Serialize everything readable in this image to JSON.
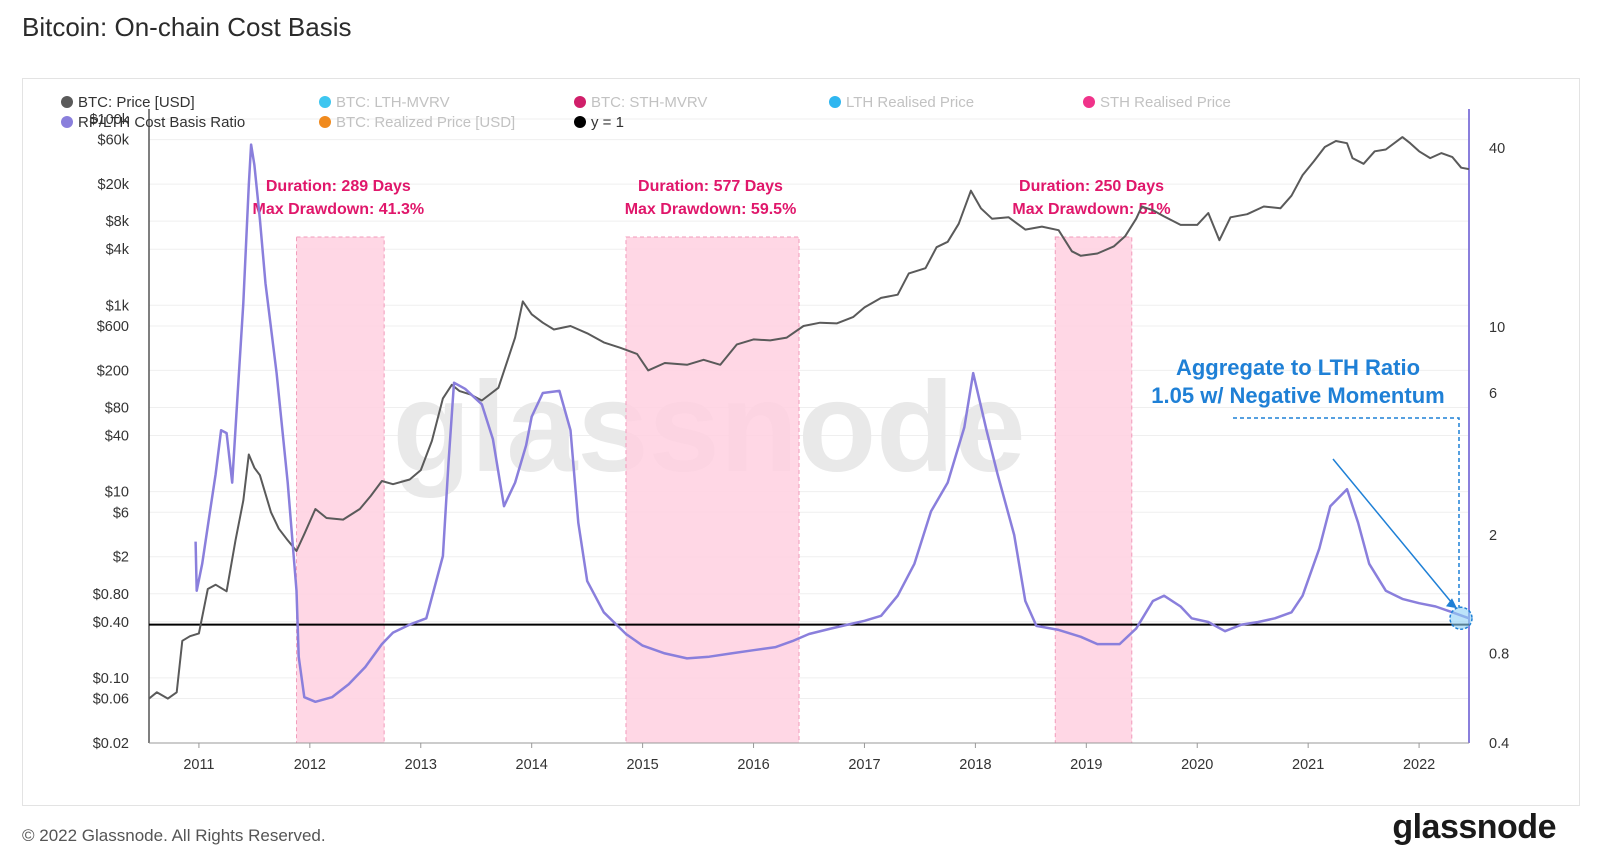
{
  "title": "Bitcoin: On-chain Cost Basis",
  "footer": {
    "copyright": "© 2022 Glassnode. All Rights Reserved.",
    "logo": "glassnode"
  },
  "watermark": "glassnode",
  "colors": {
    "price": "#5a5a5a",
    "ratio": "#8a7fdc",
    "lth_mvrv": "#3ec6f0",
    "sth_mvrv": "#d01f6a",
    "lth_realised": "#2fb6f0",
    "sth_realised": "#f0338a",
    "realized_price": "#f08a1e",
    "y1": "#000000",
    "shade": "#ffd0e0",
    "shade_border": "#f19bbb",
    "annotation_pink": "#e0176b",
    "annotation_blue": "#1f80d6"
  },
  "chart_data": {
    "type": "line",
    "legend": [
      {
        "name": "BTC: Price [USD]",
        "color": "#5a5a5a",
        "active": true
      },
      {
        "name": "BTC: LTH-MVRV",
        "color": "#3ec6f0",
        "active": false
      },
      {
        "name": "BTC: STH-MVRV",
        "color": "#d01f6a",
        "active": false
      },
      {
        "name": "LTH Realised Price",
        "color": "#2fb6f0",
        "active": false
      },
      {
        "name": "STH Realised Price",
        "color": "#f0338a",
        "active": false
      },
      {
        "name": "RP/LTH Cost Basis Ratio",
        "color": "#8a7fdc",
        "active": true
      },
      {
        "name": "BTC: Realized Price [USD]",
        "color": "#f08a1e",
        "active": false
      },
      {
        "name": "y = 1",
        "color": "#000000",
        "active": true
      }
    ],
    "x_ticks": [
      "2011",
      "2012",
      "2013",
      "2014",
      "2015",
      "2016",
      "2017",
      "2018",
      "2019",
      "2020",
      "2021",
      "2022"
    ],
    "x_range": [
      2010.55,
      2022.45
    ],
    "y_left": {
      "scale": "log",
      "range": [
        0.02,
        100000
      ],
      "ticks": [
        {
          "value": 100000,
          "label": "$100k"
        },
        {
          "value": 60000,
          "label": "$60k"
        },
        {
          "value": 20000,
          "label": "$20k"
        },
        {
          "value": 8000,
          "label": "$8k"
        },
        {
          "value": 4000,
          "label": "$4k"
        },
        {
          "value": 1000,
          "label": "$1k"
        },
        {
          "value": 600,
          "label": "$600"
        },
        {
          "value": 200,
          "label": "$200"
        },
        {
          "value": 80,
          "label": "$80"
        },
        {
          "value": 40,
          "label": "$40"
        },
        {
          "value": 10,
          "label": "$10"
        },
        {
          "value": 6,
          "label": "$6"
        },
        {
          "value": 2,
          "label": "$2"
        },
        {
          "value": 0.8,
          "label": "$0.80"
        },
        {
          "value": 0.4,
          "label": "$0.40"
        },
        {
          "value": 0.1,
          "label": "$0.10"
        },
        {
          "value": 0.06,
          "label": "$0.06"
        },
        {
          "value": 0.02,
          "label": "$0.02"
        }
      ]
    },
    "y_right": {
      "scale": "log",
      "range": [
        0.4,
        50
      ],
      "ticks": [
        {
          "value": 40,
          "label": "40"
        },
        {
          "value": 10,
          "label": "10"
        },
        {
          "value": 6,
          "label": "6"
        },
        {
          "value": 2,
          "label": "2"
        },
        {
          "value": 0.8,
          "label": "0.8"
        },
        {
          "value": 0.4,
          "label": "0.4"
        }
      ]
    },
    "series": [
      {
        "name": "BTC: Price [USD]",
        "axis": "left",
        "points": [
          [
            2010.55,
            0.06
          ],
          [
            2010.62,
            0.07
          ],
          [
            2010.72,
            0.06
          ],
          [
            2010.8,
            0.07
          ],
          [
            2010.85,
            0.25
          ],
          [
            2010.92,
            0.28
          ],
          [
            2011.0,
            0.3
          ],
          [
            2011.08,
            0.9
          ],
          [
            2011.15,
            1.0
          ],
          [
            2011.25,
            0.85
          ],
          [
            2011.33,
            3.0
          ],
          [
            2011.4,
            8.0
          ],
          [
            2011.45,
            25.0
          ],
          [
            2011.5,
            18.0
          ],
          [
            2011.55,
            15.0
          ],
          [
            2011.65,
            6.0
          ],
          [
            2011.72,
            4.0
          ],
          [
            2011.8,
            3.0
          ],
          [
            2011.88,
            2.3
          ],
          [
            2011.95,
            3.5
          ],
          [
            2012.05,
            6.5
          ],
          [
            2012.15,
            5.2
          ],
          [
            2012.3,
            5.0
          ],
          [
            2012.45,
            6.5
          ],
          [
            2012.55,
            9.0
          ],
          [
            2012.65,
            13.0
          ],
          [
            2012.75,
            12.0
          ],
          [
            2012.9,
            13.5
          ],
          [
            2013.0,
            17.0
          ],
          [
            2013.1,
            35.0
          ],
          [
            2013.2,
            100.0
          ],
          [
            2013.28,
            140.0
          ],
          [
            2013.35,
            120.0
          ],
          [
            2013.45,
            110.0
          ],
          [
            2013.55,
            95.0
          ],
          [
            2013.7,
            130.0
          ],
          [
            2013.85,
            450.0
          ],
          [
            2013.92,
            1100.0
          ],
          [
            2014.0,
            800.0
          ],
          [
            2014.1,
            650.0
          ],
          [
            2014.2,
            550.0
          ],
          [
            2014.35,
            600.0
          ],
          [
            2014.5,
            500.0
          ],
          [
            2014.65,
            400.0
          ],
          [
            2014.8,
            350.0
          ],
          [
            2014.95,
            300.0
          ],
          [
            2015.05,
            200.0
          ],
          [
            2015.2,
            240.0
          ],
          [
            2015.4,
            230.0
          ],
          [
            2015.55,
            260.0
          ],
          [
            2015.7,
            230.0
          ],
          [
            2015.85,
            380.0
          ],
          [
            2016.0,
            430.0
          ],
          [
            2016.15,
            420.0
          ],
          [
            2016.3,
            450.0
          ],
          [
            2016.45,
            600.0
          ],
          [
            2016.6,
            650.0
          ],
          [
            2016.75,
            640.0
          ],
          [
            2016.9,
            750.0
          ],
          [
            2017.0,
            950.0
          ],
          [
            2017.15,
            1200.0
          ],
          [
            2017.3,
            1300.0
          ],
          [
            2017.4,
            2200.0
          ],
          [
            2017.55,
            2500.0
          ],
          [
            2017.65,
            4200.0
          ],
          [
            2017.75,
            4800.0
          ],
          [
            2017.85,
            7500.0
          ],
          [
            2017.96,
            17000.0
          ],
          [
            2018.05,
            11000.0
          ],
          [
            2018.15,
            8500.0
          ],
          [
            2018.3,
            8800.0
          ],
          [
            2018.45,
            6500.0
          ],
          [
            2018.6,
            7000.0
          ],
          [
            2018.75,
            6400.0
          ],
          [
            2018.87,
            3800.0
          ],
          [
            2018.95,
            3400.0
          ],
          [
            2019.1,
            3600.0
          ],
          [
            2019.25,
            4300.0
          ],
          [
            2019.35,
            5500.0
          ],
          [
            2019.45,
            8500.0
          ],
          [
            2019.5,
            11500.0
          ],
          [
            2019.6,
            10500.0
          ],
          [
            2019.7,
            9000.0
          ],
          [
            2019.85,
            7300.0
          ],
          [
            2020.0,
            7300.0
          ],
          [
            2020.1,
            9800.0
          ],
          [
            2020.2,
            5000.0
          ],
          [
            2020.3,
            8800.0
          ],
          [
            2020.45,
            9500.0
          ],
          [
            2020.6,
            11500.0
          ],
          [
            2020.75,
            11000.0
          ],
          [
            2020.85,
            15000.0
          ],
          [
            2020.95,
            25000.0
          ],
          [
            2021.05,
            35000.0
          ],
          [
            2021.15,
            50000.0
          ],
          [
            2021.25,
            58000.0
          ],
          [
            2021.35,
            55000.0
          ],
          [
            2021.4,
            38000.0
          ],
          [
            2021.5,
            33000.0
          ],
          [
            2021.6,
            45000.0
          ],
          [
            2021.7,
            47000.0
          ],
          [
            2021.85,
            64000.0
          ],
          [
            2021.92,
            55000.0
          ],
          [
            2022.0,
            45000.0
          ],
          [
            2022.1,
            38000.0
          ],
          [
            2022.2,
            43000.0
          ],
          [
            2022.3,
            39000.0
          ],
          [
            2022.38,
            30000.0
          ],
          [
            2022.45,
            29000.0
          ]
        ]
      },
      {
        "name": "RP/LTH Cost Basis Ratio",
        "axis": "right",
        "points": [
          [
            2010.97,
            1.9
          ],
          [
            2010.98,
            1.3
          ],
          [
            2011.03,
            1.6
          ],
          [
            2011.1,
            2.4
          ],
          [
            2011.15,
            3.2
          ],
          [
            2011.2,
            4.5
          ],
          [
            2011.25,
            4.4
          ],
          [
            2011.3,
            3.0
          ],
          [
            2011.35,
            6.0
          ],
          [
            2011.4,
            12.0
          ],
          [
            2011.45,
            30.0
          ],
          [
            2011.47,
            41.0
          ],
          [
            2011.5,
            35.0
          ],
          [
            2011.55,
            23.0
          ],
          [
            2011.6,
            14.0
          ],
          [
            2011.7,
            7.0
          ],
          [
            2011.8,
            3.0
          ],
          [
            2011.88,
            1.3
          ],
          [
            2011.9,
            0.78
          ],
          [
            2011.95,
            0.57
          ],
          [
            2012.05,
            0.55
          ],
          [
            2012.2,
            0.57
          ],
          [
            2012.35,
            0.63
          ],
          [
            2012.5,
            0.72
          ],
          [
            2012.65,
            0.86
          ],
          [
            2012.75,
            0.94
          ],
          [
            2012.9,
            1.0
          ],
          [
            2013.05,
            1.05
          ],
          [
            2013.2,
            1.7
          ],
          [
            2013.25,
            3.5
          ],
          [
            2013.3,
            6.5
          ],
          [
            2013.4,
            6.2
          ],
          [
            2013.55,
            5.5
          ],
          [
            2013.65,
            4.2
          ],
          [
            2013.75,
            2.5
          ],
          [
            2013.85,
            3.0
          ],
          [
            2013.95,
            4.0
          ],
          [
            2014.0,
            5.0
          ],
          [
            2014.1,
            6.0
          ],
          [
            2014.25,
            6.1
          ],
          [
            2014.35,
            4.5
          ],
          [
            2014.42,
            2.2
          ],
          [
            2014.5,
            1.4
          ],
          [
            2014.65,
            1.1
          ],
          [
            2014.85,
            0.93
          ],
          [
            2015.0,
            0.85
          ],
          [
            2015.2,
            0.8
          ],
          [
            2015.4,
            0.77
          ],
          [
            2015.6,
            0.78
          ],
          [
            2015.8,
            0.8
          ],
          [
            2016.0,
            0.82
          ],
          [
            2016.2,
            0.84
          ],
          [
            2016.35,
            0.88
          ],
          [
            2016.5,
            0.93
          ],
          [
            2016.7,
            0.97
          ],
          [
            2016.85,
            1.0
          ],
          [
            2017.0,
            1.03
          ],
          [
            2017.15,
            1.07
          ],
          [
            2017.3,
            1.25
          ],
          [
            2017.45,
            1.6
          ],
          [
            2017.6,
            2.4
          ],
          [
            2017.75,
            3.0
          ],
          [
            2017.9,
            4.6
          ],
          [
            2017.98,
            7.0
          ],
          [
            2018.1,
            4.5
          ],
          [
            2018.2,
            3.2
          ],
          [
            2018.35,
            2.0
          ],
          [
            2018.45,
            1.2
          ],
          [
            2018.55,
            0.99
          ],
          [
            2018.75,
            0.96
          ],
          [
            2018.95,
            0.91
          ],
          [
            2019.1,
            0.86
          ],
          [
            2019.3,
            0.86
          ],
          [
            2019.45,
            0.97
          ],
          [
            2019.6,
            1.2
          ],
          [
            2019.7,
            1.25
          ],
          [
            2019.85,
            1.15
          ],
          [
            2019.95,
            1.05
          ],
          [
            2020.1,
            1.02
          ],
          [
            2020.25,
            0.95
          ],
          [
            2020.4,
            1.0
          ],
          [
            2020.55,
            1.02
          ],
          [
            2020.7,
            1.05
          ],
          [
            2020.85,
            1.1
          ],
          [
            2020.95,
            1.25
          ],
          [
            2021.1,
            1.8
          ],
          [
            2021.2,
            2.5
          ],
          [
            2021.35,
            2.85
          ],
          [
            2021.45,
            2.2
          ],
          [
            2021.55,
            1.6
          ],
          [
            2021.7,
            1.3
          ],
          [
            2021.85,
            1.22
          ],
          [
            2022.0,
            1.18
          ],
          [
            2022.15,
            1.15
          ],
          [
            2022.3,
            1.1
          ],
          [
            2022.45,
            1.05
          ]
        ]
      },
      {
        "name": "y = 1",
        "axis": "right",
        "points": [
          [
            2010.55,
            1.0
          ],
          [
            2022.45,
            1.0
          ]
        ]
      }
    ],
    "shaded_regions": [
      {
        "start": 2011.88,
        "end": 2012.67,
        "duration_label": "Duration: 289 Days",
        "drawdown_label": "Max Drawdown: 41.3%"
      },
      {
        "start": 2014.85,
        "end": 2016.41,
        "duration_label": "Duration: 577 Days",
        "drawdown_label": "Max Drawdown: 59.5%"
      },
      {
        "start": 2018.72,
        "end": 2019.41,
        "duration_label": "Duration: 250 Days",
        "drawdown_label": "Max Drawdown: 51%"
      }
    ],
    "annotation": {
      "line1": "Aggregate to LTH Ratio",
      "line2": "1.05 w/ Negative Momentum",
      "value": 1.05
    }
  }
}
